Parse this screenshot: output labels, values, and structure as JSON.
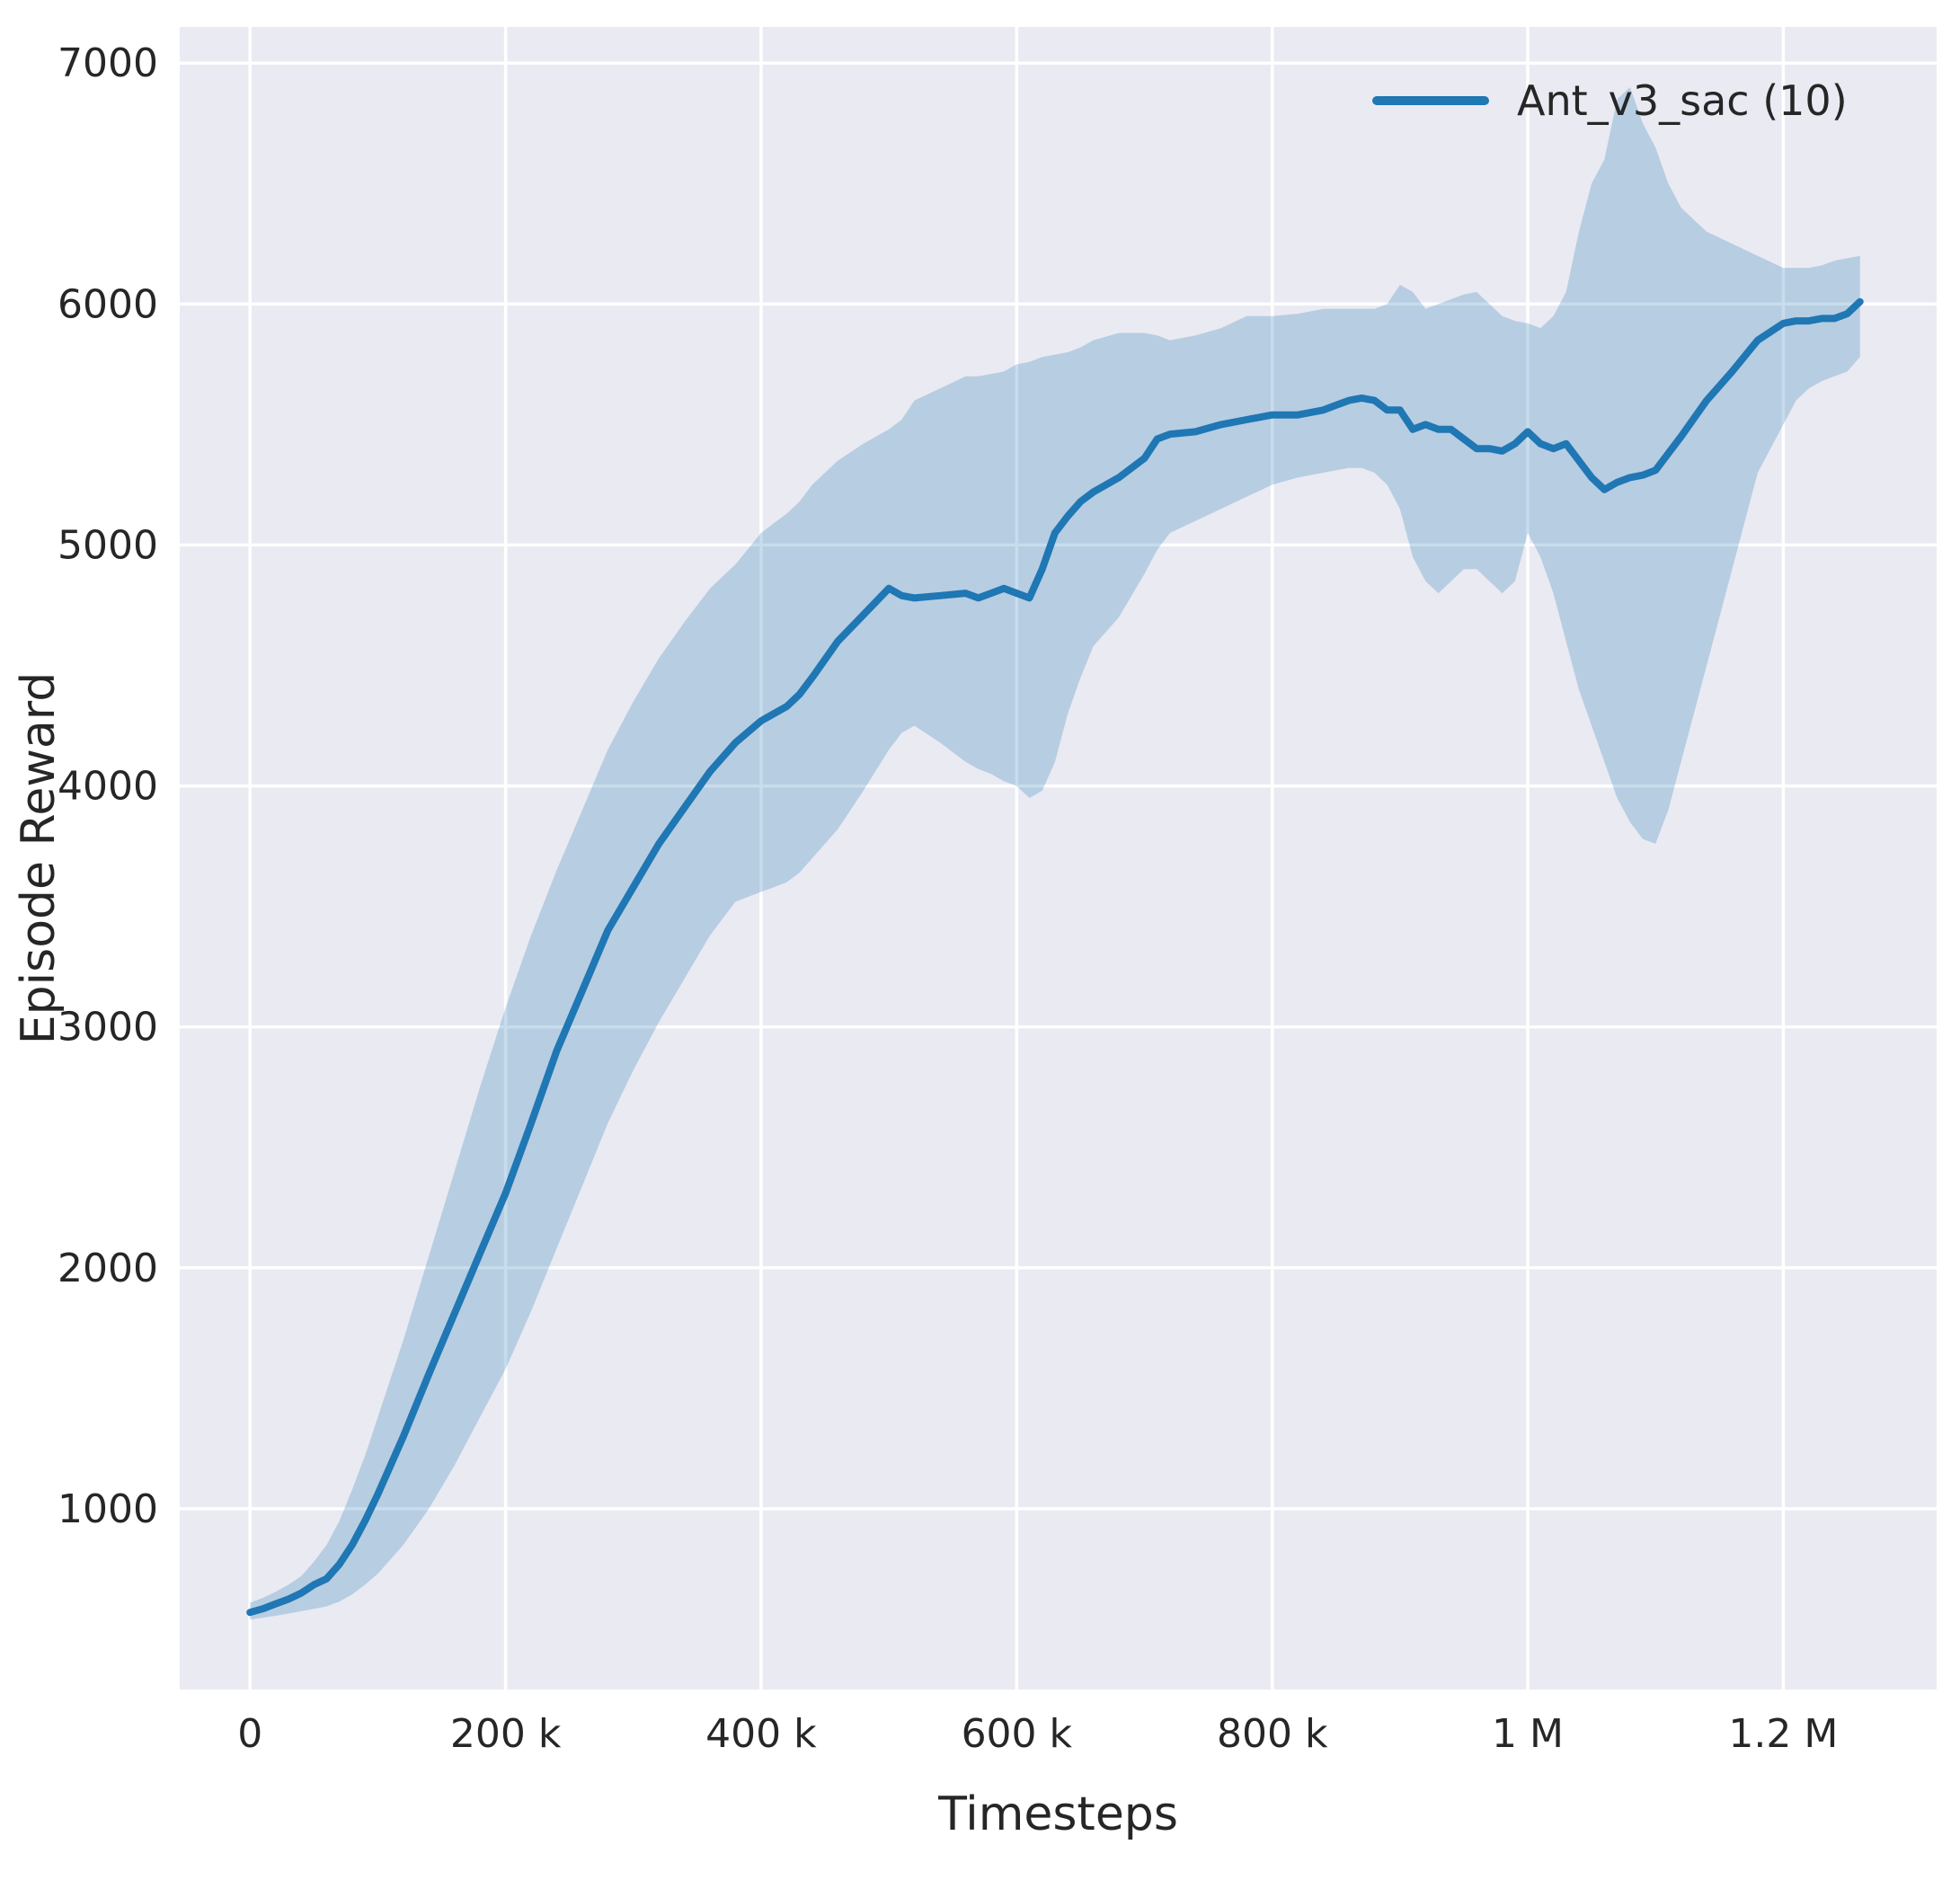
{
  "figure": {
    "background": "#ffffff",
    "axes_background": "#eaeaf2",
    "grid_color": "#ffffff",
    "text_color": "#262626"
  },
  "chart_data": {
    "type": "line",
    "title": "",
    "xlabel": "Timesteps",
    "ylabel": "Episode Reward",
    "xlim": [
      -55000,
      1320000
    ],
    "ylim": [
      250,
      7150
    ],
    "grid": true,
    "xticks": {
      "values": [
        0,
        200000,
        400000,
        600000,
        800000,
        1000000,
        1200000
      ],
      "labels": [
        "0",
        "200 k",
        "400 k",
        "600 k",
        "800 k",
        "1 M",
        "1.2 M"
      ]
    },
    "yticks": {
      "values": [
        1000,
        2000,
        3000,
        4000,
        5000,
        6000,
        7000
      ],
      "labels": [
        "1000",
        "2000",
        "3000",
        "4000",
        "5000",
        "6000",
        "7000"
      ]
    },
    "legend": {
      "position": "top-right",
      "entries": [
        {
          "label": "Ant_v3_sac (10)",
          "color": "#1f77b4"
        }
      ]
    },
    "series": [
      {
        "name": "Ant_v3_sac (10)",
        "color": "#1f77b4",
        "band_opacity": 0.25,
        "x": [
          0,
          10000,
          20000,
          30000,
          40000,
          50000,
          60000,
          70000,
          80000,
          90000,
          100000,
          120000,
          140000,
          160000,
          180000,
          200000,
          220000,
          240000,
          260000,
          280000,
          300000,
          320000,
          340000,
          360000,
          380000,
          400000,
          410000,
          420000,
          430000,
          440000,
          460000,
          480000,
          500000,
          510000,
          520000,
          540000,
          560000,
          570000,
          580000,
          590000,
          600000,
          610000,
          620000,
          630000,
          640000,
          650000,
          660000,
          680000,
          700000,
          710000,
          720000,
          740000,
          760000,
          780000,
          800000,
          820000,
          840000,
          850000,
          860000,
          870000,
          880000,
          890000,
          900000,
          910000,
          920000,
          930000,
          940000,
          950000,
          960000,
          970000,
          980000,
          990000,
          1000000,
          1010000,
          1020000,
          1030000,
          1040000,
          1050000,
          1060000,
          1070000,
          1080000,
          1090000,
          1100000,
          1110000,
          1120000,
          1140000,
          1160000,
          1180000,
          1200000,
          1210000,
          1220000,
          1230000,
          1240000,
          1250000,
          1260000
        ],
        "mean": [
          570,
          585,
          605,
          625,
          650,
          685,
          710,
          770,
          850,
          950,
          1060,
          1300,
          1560,
          1810,
          2060,
          2310,
          2600,
          2900,
          3150,
          3400,
          3580,
          3760,
          3910,
          4060,
          4180,
          4270,
          4300,
          4330,
          4380,
          4450,
          4600,
          4710,
          4820,
          4790,
          4780,
          4790,
          4800,
          4780,
          4800,
          4820,
          4800,
          4780,
          4900,
          5050,
          5120,
          5180,
          5220,
          5280,
          5360,
          5440,
          5460,
          5470,
          5500,
          5520,
          5540,
          5540,
          5560,
          5580,
          5600,
          5610,
          5600,
          5560,
          5560,
          5480,
          5500,
          5480,
          5480,
          5440,
          5400,
          5400,
          5390,
          5420,
          5470,
          5420,
          5400,
          5420,
          5350,
          5280,
          5230,
          5260,
          5280,
          5290,
          5310,
          5380,
          5450,
          5600,
          5720,
          5850,
          5920,
          5930,
          5930,
          5940,
          5940,
          5960,
          6010
        ],
        "lower": [
          540,
          548,
          556,
          565,
          575,
          585,
          595,
          615,
          645,
          685,
          730,
          850,
          1000,
          1180,
          1380,
          1580,
          1820,
          2080,
          2340,
          2600,
          2820,
          3020,
          3200,
          3380,
          3520,
          3560,
          3580,
          3600,
          3640,
          3700,
          3820,
          3980,
          4150,
          4220,
          4250,
          4180,
          4100,
          4070,
          4050,
          4020,
          4000,
          3950,
          3980,
          4100,
          4300,
          4450,
          4580,
          4700,
          4880,
          4980,
          5050,
          5100,
          5150,
          5200,
          5250,
          5280,
          5300,
          5310,
          5320,
          5320,
          5300,
          5250,
          5150,
          4950,
          4850,
          4800,
          4850,
          4900,
          4900,
          4850,
          4800,
          4850,
          5050,
          4950,
          4800,
          4600,
          4400,
          4250,
          4100,
          3950,
          3850,
          3780,
          3760,
          3900,
          4100,
          4500,
          4900,
          5300,
          5500,
          5600,
          5650,
          5680,
          5700,
          5720,
          5780
        ],
        "upper": [
          610,
          630,
          655,
          685,
          720,
          780,
          850,
          950,
          1080,
          1220,
          1380,
          1700,
          2050,
          2400,
          2750,
          3080,
          3380,
          3650,
          3900,
          4150,
          4350,
          4530,
          4680,
          4820,
          4920,
          5050,
          5090,
          5130,
          5180,
          5250,
          5350,
          5420,
          5480,
          5520,
          5600,
          5650,
          5700,
          5700,
          5710,
          5720,
          5750,
          5760,
          5780,
          5790,
          5800,
          5820,
          5850,
          5880,
          5880,
          5870,
          5850,
          5870,
          5900,
          5950,
          5950,
          5960,
          5980,
          5980,
          5980,
          5980,
          5980,
          6000,
          6080,
          6050,
          5980,
          6000,
          6020,
          6040,
          6050,
          6000,
          5950,
          5930,
          5920,
          5900,
          5950,
          6050,
          6300,
          6500,
          6600,
          6850,
          6900,
          6750,
          6650,
          6500,
          6400,
          6300,
          6250,
          6200,
          6150,
          6150,
          6150,
          6160,
          6180,
          6190,
          6200
        ]
      }
    ]
  }
}
